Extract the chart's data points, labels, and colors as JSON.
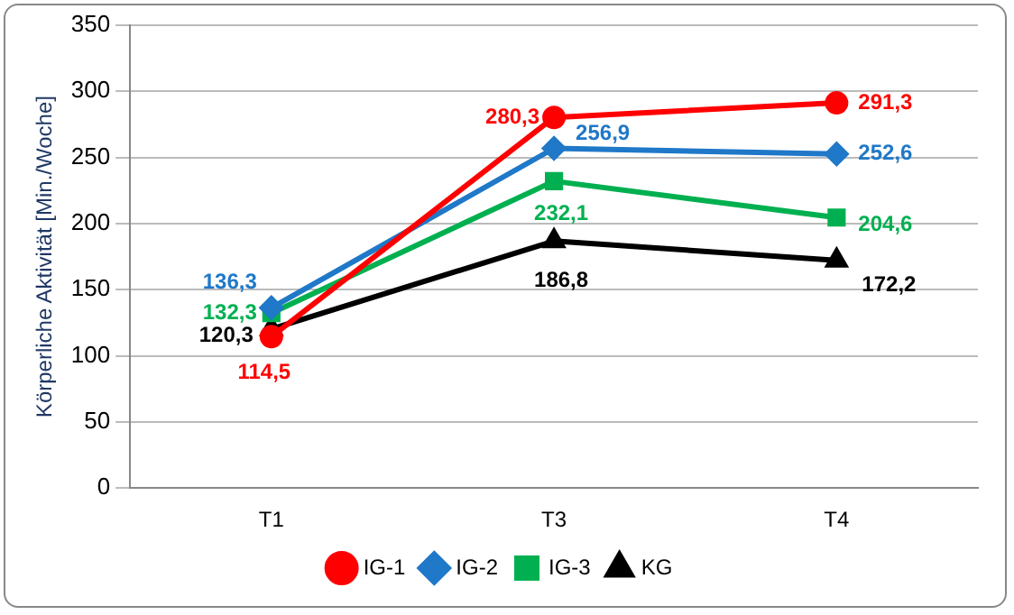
{
  "chart_data": {
    "type": "line",
    "ylabel": "Körperliche Aktivität [Min./Woche]",
    "categories": [
      "T1",
      "T3",
      "T4"
    ],
    "series": [
      {
        "name": "IG-1",
        "color": "#ff0000",
        "marker": "circle",
        "values": [
          114.5,
          280.3,
          291.3
        ],
        "value_labels": [
          "114,5",
          "280,3",
          "291,3"
        ]
      },
      {
        "name": "IG-2",
        "color": "#1f78c8",
        "marker": "diamond",
        "values": [
          136.3,
          256.9,
          252.6
        ],
        "value_labels": [
          "136,3",
          "256,9",
          "252,6"
        ]
      },
      {
        "name": "IG-3",
        "color": "#00b050",
        "marker": "square",
        "values": [
          132.3,
          232.1,
          204.6
        ],
        "value_labels": [
          "132,3",
          "232,1",
          "204,6"
        ]
      },
      {
        "name": "KG",
        "color": "#000000",
        "marker": "triangle",
        "values": [
          120.3,
          186.8,
          172.2
        ],
        "value_labels": [
          "120,3",
          "186,8",
          "172,2"
        ]
      }
    ],
    "ylim": [
      0,
      350
    ],
    "yticks": [
      0,
      50,
      100,
      150,
      200,
      250,
      300,
      350
    ],
    "grid": "y",
    "legend": "bottom",
    "line_style": "solid"
  }
}
